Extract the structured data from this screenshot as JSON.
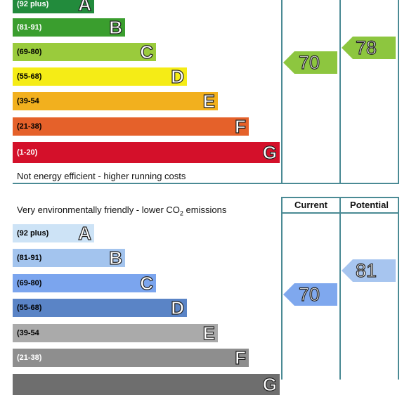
{
  "energy": {
    "bands": [
      {
        "range": "(92 plus)",
        "letter": "A",
        "color": "#008054"
      },
      {
        "range": "(81-91)",
        "letter": "B",
        "color": "#19b459"
      },
      {
        "range": "(69-80)",
        "letter": "C",
        "color": "#8dce46"
      },
      {
        "range": "(55-68)",
        "letter": "D",
        "color": "#ffd500"
      },
      {
        "range": "(39-54",
        "letter": "E",
        "color": "#fcaa65"
      },
      {
        "range": "(21-38)",
        "letter": "F",
        "color": "#ef8023"
      },
      {
        "range": "(1-20)",
        "letter": "G",
        "color": "#e9153b"
      }
    ],
    "footer_text": "Not energy efficient - higher running costs",
    "current": "70",
    "potential": "78"
  },
  "environmental": {
    "header_text_main": "Very environmentally friendly - lower CO",
    "header_text_sub": "2",
    "header_text_end": " emissions",
    "col_current": "Current",
    "col_potential": "Potential",
    "bands": [
      {
        "range": "(92 plus)",
        "letter": "A"
      },
      {
        "range": "(81-91)",
        "letter": "B"
      },
      {
        "range": "(69-80)",
        "letter": "C"
      },
      {
        "range": "(55-68)",
        "letter": "D"
      },
      {
        "range": "(39-54",
        "letter": "E"
      },
      {
        "range": "(21-38)",
        "letter": "F"
      },
      {
        "range": "",
        "letter": "G"
      }
    ],
    "current": "70",
    "potential": "81"
  }
}
